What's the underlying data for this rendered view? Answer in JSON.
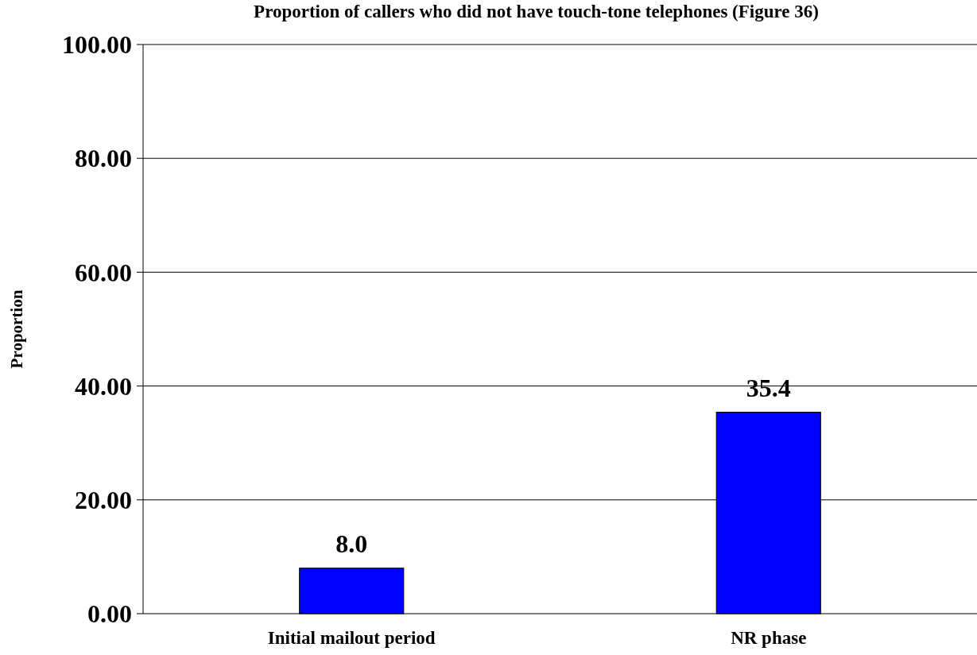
{
  "chart_data": {
    "type": "bar",
    "title": "Proportion of callers who did not have touch-tone telephones (Figure 36)",
    "ylabel": "Proportion",
    "categories": [
      "Initial mailout period",
      "NR phase"
    ],
    "values": [
      8.0,
      35.4
    ],
    "value_labels": [
      "8.0",
      "35.4"
    ],
    "color": "#0000ff",
    "ylim": [
      0,
      100
    ],
    "yticks": [
      {
        "value": 0,
        "label": "0.00"
      },
      {
        "value": 20,
        "label": "20.00"
      },
      {
        "value": 40,
        "label": "40.00"
      },
      {
        "value": 60,
        "label": "60.00"
      },
      {
        "value": 80,
        "label": "80.00"
      },
      {
        "value": 100,
        "label": "100.00"
      }
    ],
    "grid": "y"
  }
}
